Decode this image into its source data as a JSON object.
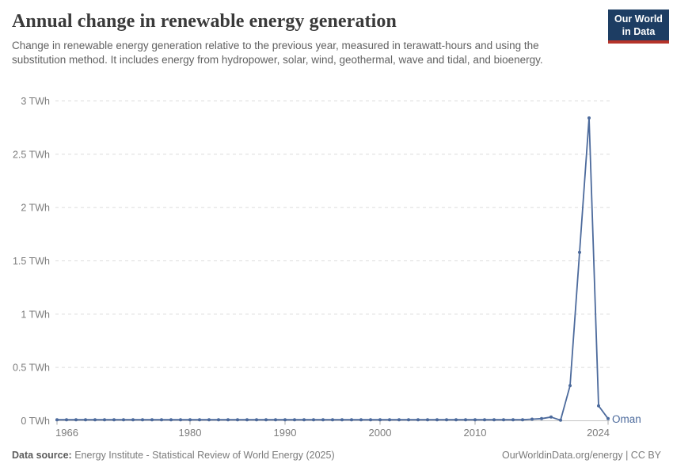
{
  "header": {
    "title": "Annual change in renewable energy generation",
    "subtitle": "Change in renewable energy generation relative to the previous year, measured in terawatt-hours and using the substitution method. It includes energy from hydropower, solar, wind, geothermal, wave and tidal, and bioenergy."
  },
  "logo": {
    "line1": "Our World",
    "line2": "in Data"
  },
  "chart_data": {
    "type": "line",
    "title": "Annual change in renewable energy generation",
    "xlabel": "",
    "ylabel": "",
    "unit": "TWh",
    "xlim": [
      1966,
      2024
    ],
    "ylim": [
      0,
      3
    ],
    "grid": "horizontal-dashed",
    "legend": "end-of-line-label",
    "entity_label": "Oman",
    "yticks": {
      "values": [
        0,
        0.5,
        1,
        1.5,
        2,
        2.5,
        3
      ],
      "labels": [
        "0 TWh",
        "0.5 TWh",
        "1 TWh",
        "1.5 TWh",
        "2 TWh",
        "2.5 TWh",
        "3 TWh"
      ]
    },
    "xticks": [
      1966,
      1980,
      1990,
      2000,
      2010,
      2024
    ],
    "x": [
      1966,
      1967,
      1968,
      1969,
      1970,
      1971,
      1972,
      1973,
      1974,
      1975,
      1976,
      1977,
      1978,
      1979,
      1980,
      1981,
      1982,
      1983,
      1984,
      1985,
      1986,
      1987,
      1988,
      1989,
      1990,
      1991,
      1992,
      1993,
      1994,
      1995,
      1996,
      1997,
      1998,
      1999,
      2000,
      2001,
      2002,
      2003,
      2004,
      2005,
      2006,
      2007,
      2008,
      2009,
      2010,
      2011,
      2012,
      2013,
      2014,
      2015,
      2016,
      2017,
      2018,
      2019,
      2020,
      2021,
      2022,
      2023,
      2024
    ],
    "series": [
      {
        "name": "Oman",
        "values": [
          0.01,
          0.01,
          0.01,
          0.01,
          0.01,
          0.01,
          0.01,
          0.01,
          0.01,
          0.01,
          0.01,
          0.01,
          0.01,
          0.01,
          0.01,
          0.01,
          0.01,
          0.01,
          0.01,
          0.01,
          0.01,
          0.01,
          0.01,
          0.01,
          0.01,
          0.01,
          0.01,
          0.01,
          0.01,
          0.01,
          0.01,
          0.01,
          0.01,
          0.01,
          0.01,
          0.01,
          0.01,
          0.01,
          0.01,
          0.01,
          0.01,
          0.01,
          0.01,
          0.01,
          0.01,
          0.01,
          0.01,
          0.01,
          0.01,
          0.01,
          0.015,
          0.02,
          0.035,
          0.005,
          0.33,
          1.58,
          2.84,
          0.14,
          0.02
        ]
      }
    ]
  },
  "colors": {
    "line": "#4c6a9c",
    "entity_label": "#4c6a9c",
    "grid": "#dcdcdc",
    "axis": "#c4c4c4",
    "tick": "#a8a8a8",
    "tick_label": "#7c7c7c",
    "logo_bg": "#1d3d63",
    "logo_accent": "#b5332a"
  },
  "footer": {
    "source_label": "Data source:",
    "source_text": "Energy Institute - Statistical Review of World Energy (2025)",
    "credit": "OurWorldinData.org/energy | CC BY"
  }
}
